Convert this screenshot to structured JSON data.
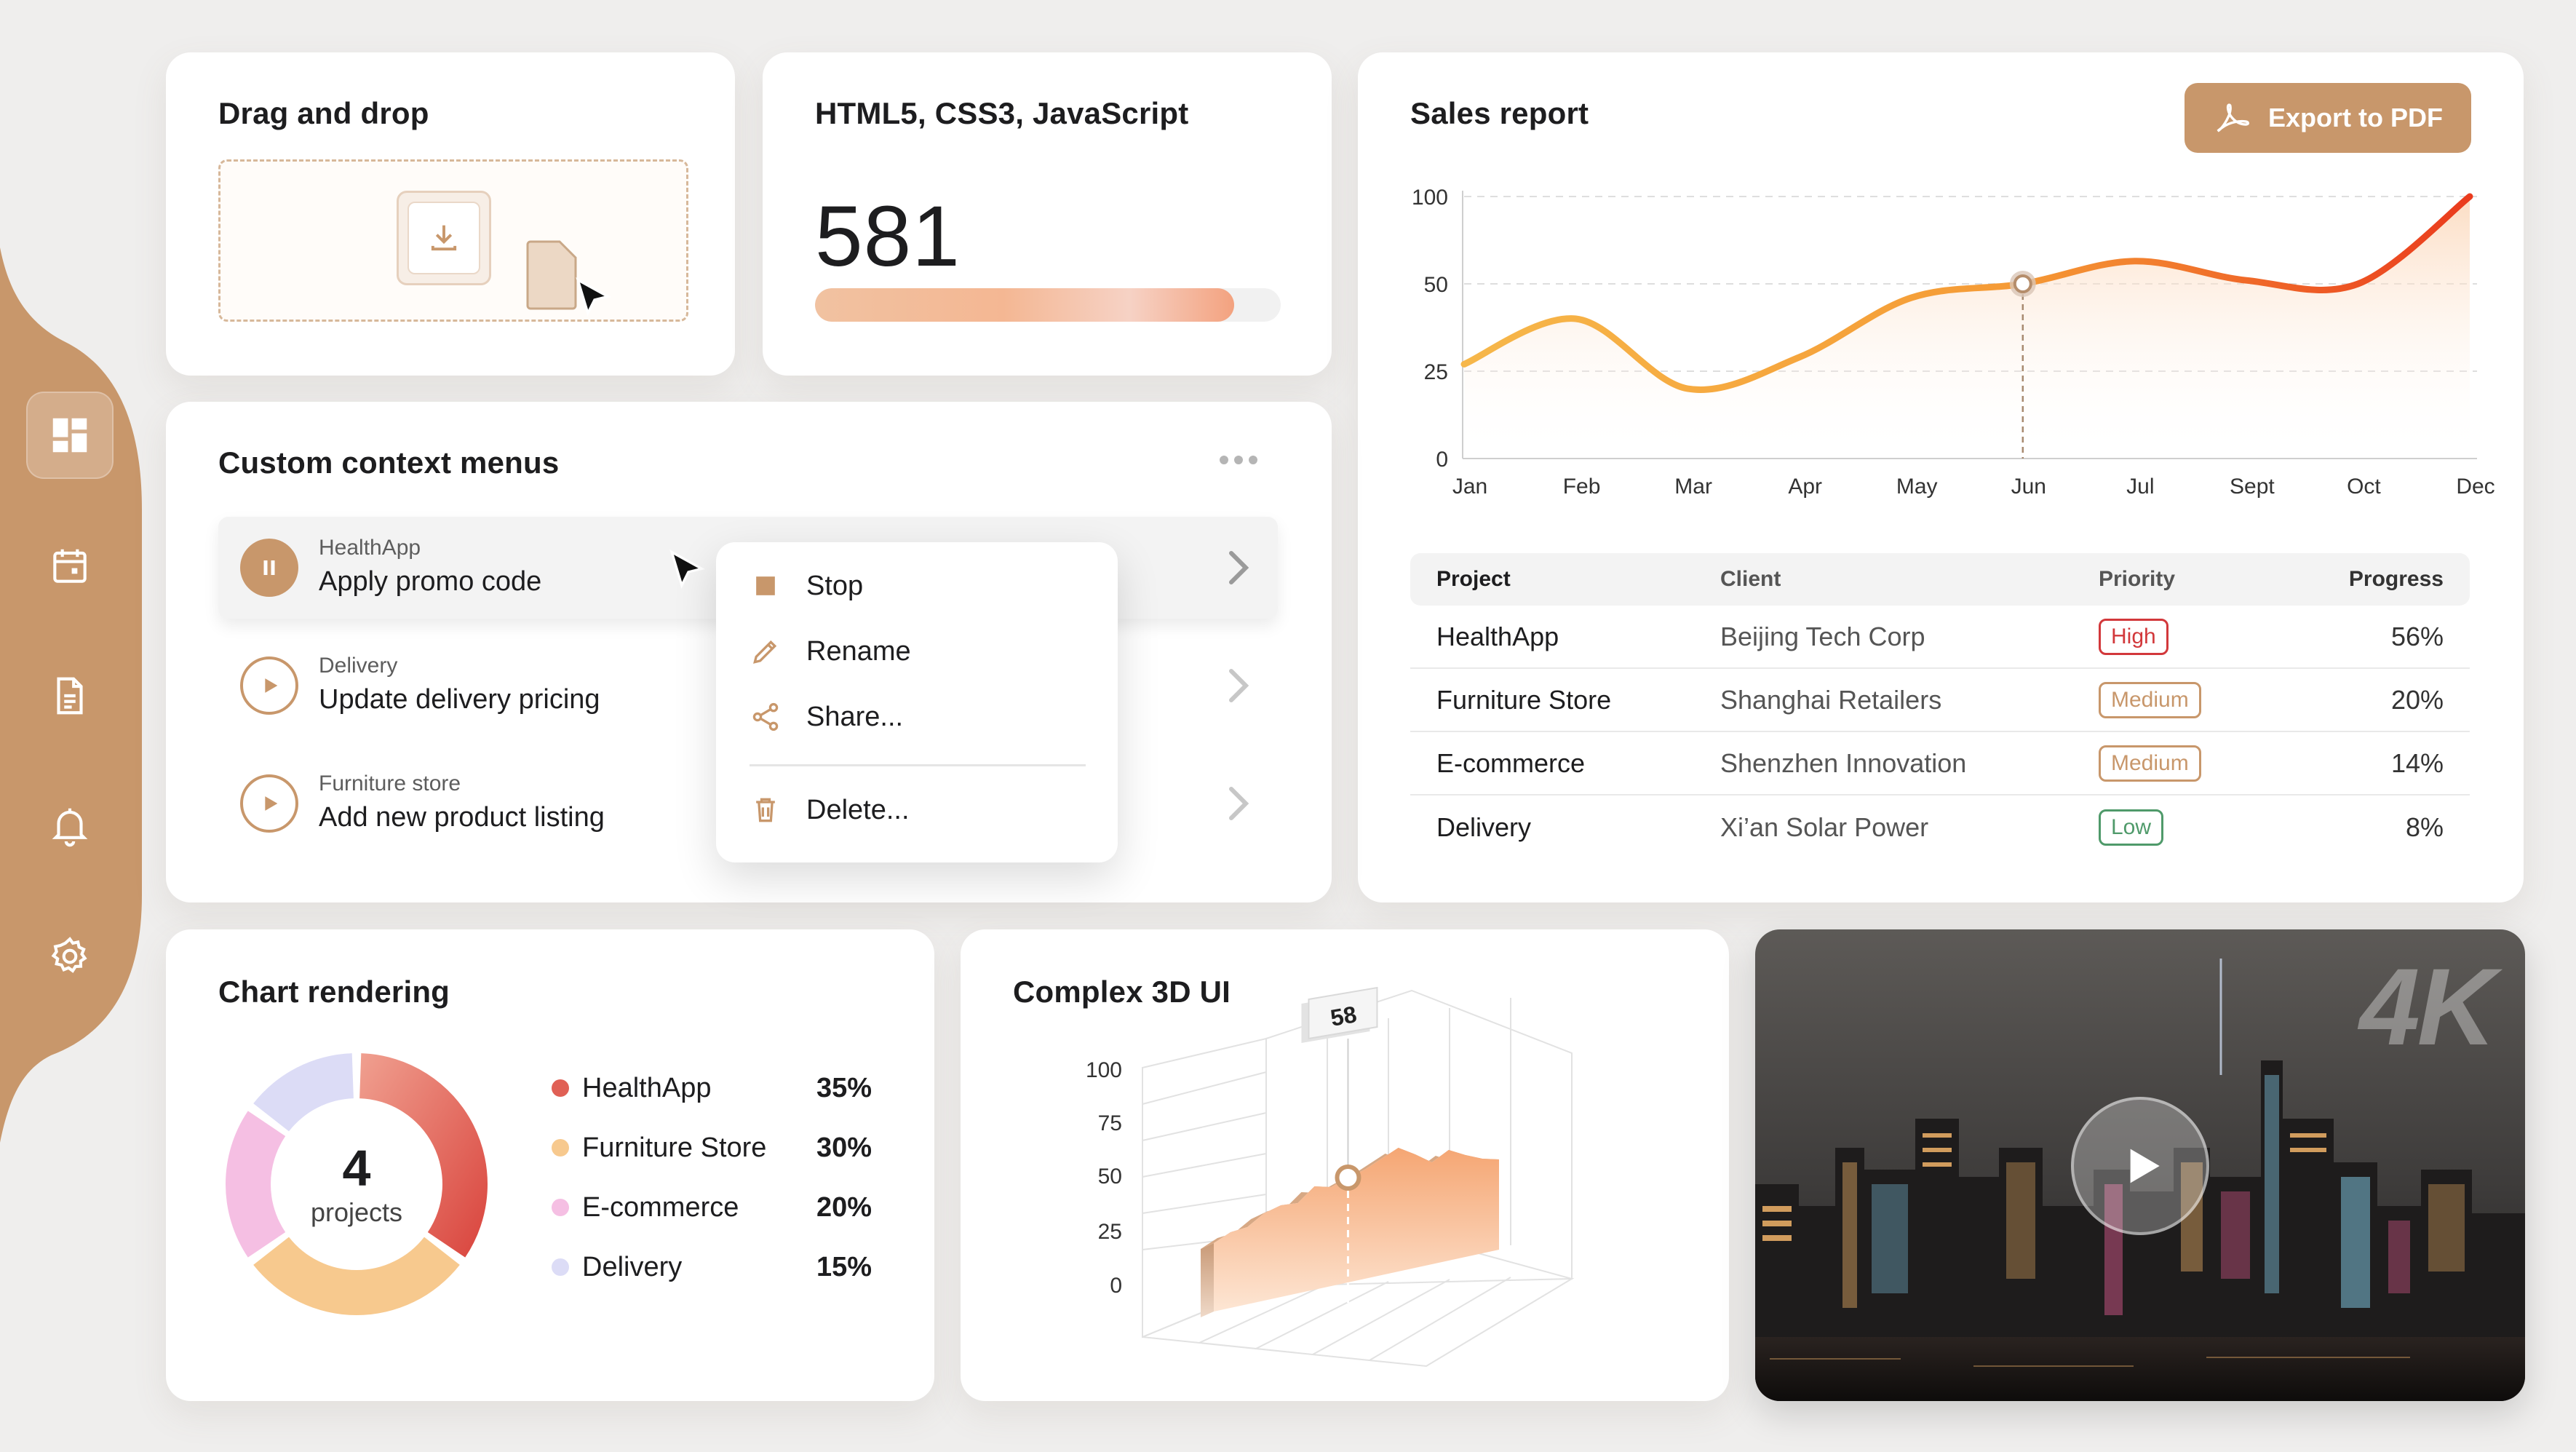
{
  "colors": {
    "accent": "#c8976b",
    "page_bg": "#efeeed",
    "high": "#d2383b",
    "medium": "#c8976b",
    "low": "#4f9a6a",
    "chart_orange": "#f07d2a",
    "chart_yellow": "#f6b74a",
    "chart_red": "#ea3b1d"
  },
  "sidebar": {
    "items": [
      {
        "icon": "dashboard-icon",
        "active": true
      },
      {
        "icon": "calendar-icon",
        "active": false
      },
      {
        "icon": "document-icon",
        "active": false
      },
      {
        "icon": "bell-icon",
        "active": false
      },
      {
        "icon": "gear-icon",
        "active": false
      }
    ]
  },
  "drag_drop": {
    "title": "Drag and drop",
    "icons": [
      "download-icon",
      "file-icon",
      "cursor-icon"
    ]
  },
  "tech": {
    "title": "HTML5, CSS3, JavaScript",
    "value": "581",
    "progress_fraction": 0.9
  },
  "sales": {
    "title": "Sales report",
    "export_label": "Export to PDF",
    "export_icon": "acrobat-icon",
    "table": {
      "headers": [
        "Project",
        "Client",
        "Priority",
        "Progress"
      ],
      "rows": [
        {
          "project": "HealthApp",
          "client": "Beijing Tech Corp",
          "priority": "High",
          "level": "high",
          "progress": "56%"
        },
        {
          "project": "Furniture Store",
          "client": "Shanghai Retailers",
          "priority": "Medium",
          "level": "medium",
          "progress": "20%"
        },
        {
          "project": "E-commerce",
          "client": "Shenzhen Innovation",
          "priority": "Medium",
          "level": "medium",
          "progress": "14%"
        },
        {
          "project": "Delivery",
          "client": "Xi’an Solar Power",
          "priority": "Low",
          "level": "low",
          "progress": "8%"
        }
      ]
    }
  },
  "context_menus": {
    "title": "Custom context menus",
    "more_icon": "more-dots-icon",
    "items": [
      {
        "sub": "HealthApp",
        "main": "Apply promo code",
        "state": "pause"
      },
      {
        "sub": "Delivery",
        "main": "Update delivery pricing",
        "state": "play"
      },
      {
        "sub": "Furniture store",
        "main": "Add new product listing",
        "state": "play"
      }
    ],
    "menu": {
      "items": [
        {
          "label": "Stop",
          "icon": "stop-icon"
        },
        {
          "label": "Rename",
          "icon": "pencil-icon"
        },
        {
          "label": "Share...",
          "icon": "share-icon"
        },
        {
          "label": "Delete...",
          "icon": "trash-icon"
        }
      ]
    }
  },
  "chart_rendering": {
    "title": "Chart rendering",
    "center_value": "4",
    "center_label": "projects"
  },
  "complex_3d": {
    "title": "Complex 3D UI",
    "marker_label": "58"
  },
  "video": {
    "badge": "4K",
    "play_icon": "play-icon"
  },
  "chart_data": [
    {
      "type": "line",
      "title": "Sales report",
      "x": [
        "Jan",
        "Feb",
        "Mar",
        "Apr",
        "May",
        "Jun",
        "Jul",
        "Sept",
        "Oct",
        "Dec"
      ],
      "y_ticks": [
        "100",
        "50",
        "25",
        "0"
      ],
      "y_tick_values": [
        100,
        50,
        25,
        0
      ],
      "series": [
        {
          "values": [
            27,
            40,
            20,
            29,
            46,
            50,
            63,
            52,
            50,
            100
          ]
        }
      ],
      "highlight": {
        "x": "Jun",
        "value": 50
      },
      "grid": true
    },
    {
      "type": "pie",
      "title": "Chart rendering",
      "categories": [
        "HealthApp",
        "Furniture Store",
        "E-commerce",
        "Delivery"
      ],
      "values": [
        35,
        30,
        20,
        15
      ],
      "value_labels": [
        "35%",
        "30%",
        "20%",
        "15%"
      ],
      "colors": [
        "#e06055",
        "#f7c98e",
        "#f5bfe3",
        "#dcdcf6"
      ]
    },
    {
      "type": "area",
      "title": "Complex 3D UI",
      "y_ticks": [
        "100",
        "75",
        "50",
        "25",
        "0"
      ],
      "y_tick_values": [
        100,
        75,
        50,
        25,
        0
      ],
      "values": [
        47,
        52,
        53,
        60,
        63,
        62,
        71,
        68,
        72,
        75,
        80,
        85,
        78,
        70,
        76,
        70,
        65,
        62
      ],
      "highlight_label": "58"
    }
  ]
}
